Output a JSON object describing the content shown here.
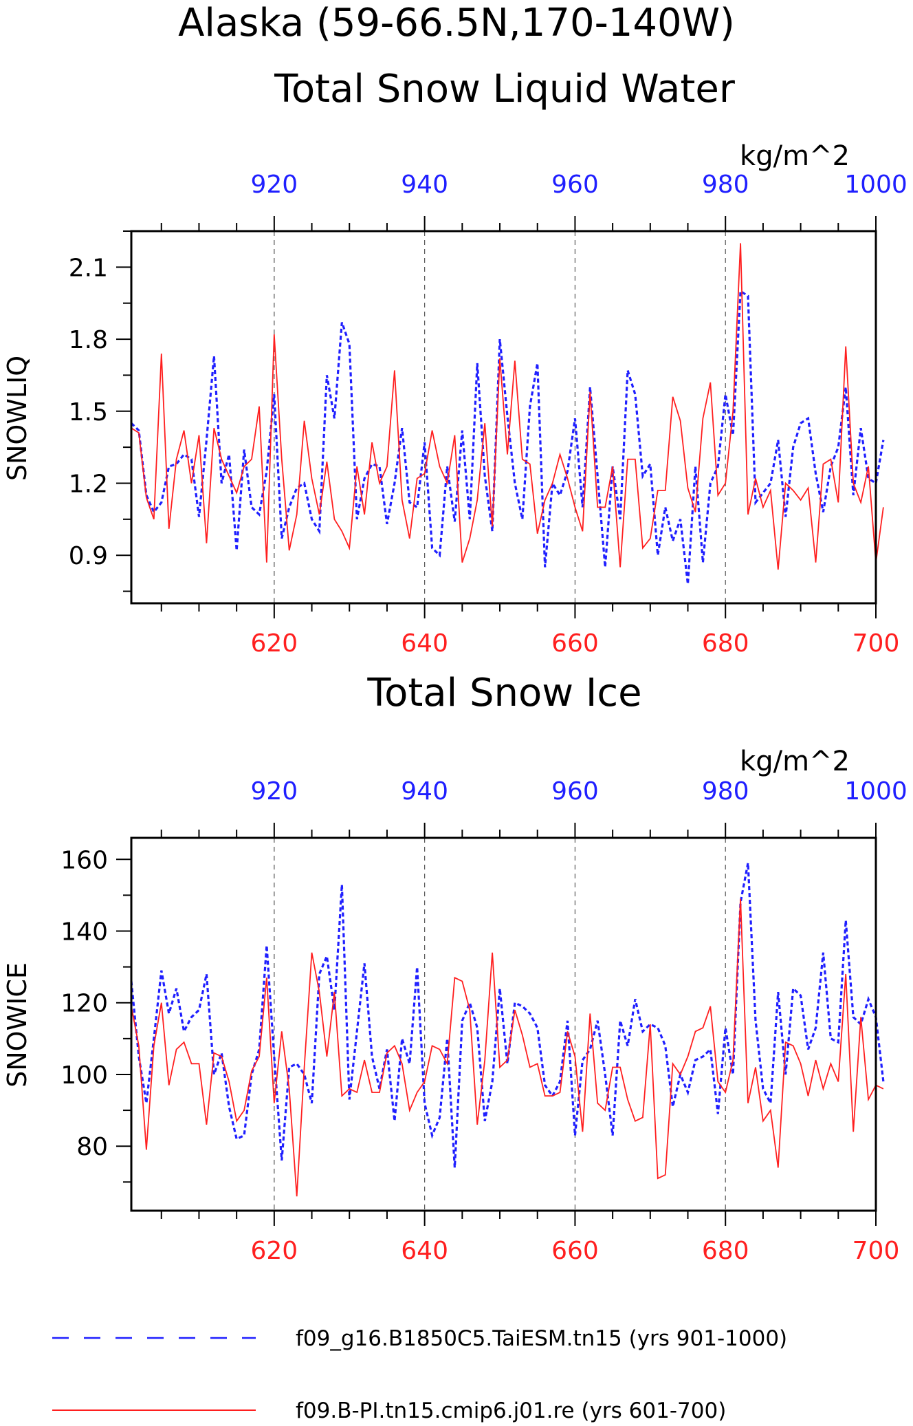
{
  "figure": {
    "title_line1": "Alaska (59-66.5N,170-140W)"
  },
  "colors": {
    "blue": "#1f1fff",
    "red": "#ff1f1f",
    "axis": "#000000",
    "grid": "#555555"
  },
  "legend": {
    "entries": [
      {
        "label": "f09_g16.B1850C5.TaiESM.tn15 (yrs 901-1000)",
        "color": "#1f1fff",
        "style": "dashed"
      },
      {
        "label": "f09.B-PI.tn15.cmip6.j01.re (yrs 601-700)",
        "color": "#ff1f1f",
        "style": "solid"
      }
    ]
  },
  "chart_data": [
    {
      "type": "line",
      "title": "Total Snow Liquid Water",
      "ylabel": "SNOWLIQ",
      "top_axis_label": "kg/m^2",
      "ylim": [
        0.7,
        2.25
      ],
      "yticks": [
        "0.9",
        "1.2",
        "1.5",
        "1.8",
        "2.1"
      ],
      "bottom_axis": {
        "range": [
          601,
          700
        ],
        "ticks": [
          "620",
          "640",
          "660",
          "680",
          "700"
        ],
        "color": "#ff1f1f"
      },
      "top_axis": {
        "range": [
          901,
          1000
        ],
        "ticks": [
          "920",
          "940",
          "960",
          "980",
          "1000"
        ],
        "color": "#1f1fff"
      },
      "grid": "vertical dashed at major ticks",
      "series": [
        {
          "axis": "top",
          "style": "dashed",
          "color": "#1f1fff",
          "start": 901,
          "values": [
            1.45,
            1.42,
            1.15,
            1.08,
            1.12,
            1.27,
            1.28,
            1.32,
            1.3,
            1.06,
            1.38,
            1.73,
            1.2,
            1.32,
            0.92,
            1.34,
            1.1,
            1.07,
            1.25,
            1.57,
            0.97,
            1.1,
            1.18,
            1.2,
            1.05,
            1.0,
            1.65,
            1.47,
            1.87,
            1.78,
            1.05,
            1.22,
            1.28,
            1.27,
            1.03,
            1.2,
            1.43,
            1.12,
            1.1,
            1.37,
            0.93,
            0.9,
            1.27,
            1.04,
            1.42,
            1.05,
            1.7,
            1.23,
            1.0,
            1.8,
            1.48,
            1.2,
            1.05,
            1.52,
            1.7,
            0.85,
            1.2,
            1.15,
            1.25,
            1.47,
            1.1,
            1.6,
            1.23,
            0.85,
            1.27,
            1.05,
            1.67,
            1.57,
            1.23,
            1.28,
            0.9,
            1.1,
            0.96,
            1.05,
            0.78,
            1.27,
            0.87,
            1.2,
            1.27,
            1.57,
            1.4,
            2.0,
            1.98,
            1.12,
            1.16,
            1.2,
            1.38,
            1.06,
            1.35,
            1.45,
            1.47,
            1.24,
            1.08,
            1.27,
            1.35,
            1.6,
            1.15,
            1.43,
            1.22,
            1.2,
            1.38
          ]
        },
        {
          "axis": "bottom",
          "style": "solid",
          "color": "#ff1f1f",
          "start": 601,
          "values": [
            1.43,
            1.41,
            1.14,
            1.05,
            1.74,
            1.01,
            1.3,
            1.42,
            1.2,
            1.4,
            0.95,
            1.43,
            1.3,
            1.23,
            1.16,
            1.27,
            1.3,
            1.52,
            0.87,
            1.82,
            1.3,
            0.92,
            1.07,
            1.46,
            1.22,
            1.07,
            1.29,
            1.05,
            1.0,
            0.93,
            1.27,
            1.07,
            1.37,
            1.2,
            1.27,
            1.67,
            1.13,
            0.97,
            1.22,
            1.24,
            1.42,
            1.27,
            1.2,
            1.4,
            0.87,
            0.97,
            1.13,
            1.45,
            1.02,
            1.72,
            1.32,
            1.71,
            1.3,
            1.28,
            0.99,
            1.13,
            1.2,
            1.32,
            1.22,
            1.1,
            1.0,
            1.58,
            1.1,
            1.1,
            1.27,
            0.85,
            1.3,
            1.3,
            0.93,
            0.97,
            1.17,
            1.17,
            1.56,
            1.46,
            1.18,
            1.08,
            1.47,
            1.62,
            1.15,
            1.2,
            1.5,
            2.2,
            1.07,
            1.22,
            1.1,
            1.17,
            0.84,
            1.2,
            1.17,
            1.13,
            1.18,
            0.87,
            1.28,
            1.3,
            1.12,
            1.77,
            1.2,
            1.12,
            1.27,
            0.87,
            1.1
          ]
        }
      ]
    },
    {
      "type": "line",
      "title": "Total Snow Ice",
      "ylabel": "SNOWICE",
      "top_axis_label": "kg/m^2",
      "ylim": [
        62,
        166
      ],
      "yticks": [
        "80",
        "100",
        "120",
        "140",
        "160"
      ],
      "bottom_axis": {
        "range": [
          601,
          700
        ],
        "ticks": [
          "620",
          "640",
          "660",
          "680",
          "700"
        ],
        "color": "#ff1f1f"
      },
      "top_axis": {
        "range": [
          901,
          1000
        ],
        "ticks": [
          "920",
          "940",
          "960",
          "980",
          "1000"
        ],
        "color": "#1f1fff"
      },
      "grid": "vertical dashed at major ticks",
      "series": [
        {
          "axis": "top",
          "style": "dashed",
          "color": "#1f1fff",
          "start": 901,
          "values": [
            126,
            105,
            92,
            110,
            129,
            117,
            124,
            112,
            116,
            118,
            128,
            100,
            106,
            91,
            82,
            83,
            100,
            107,
            136,
            105,
            76,
            102,
            103,
            100,
            92,
            128,
            133,
            118,
            153,
            93,
            112,
            131,
            105,
            96,
            107,
            87,
            110,
            103,
            130,
            92,
            83,
            88,
            110,
            74,
            115,
            120,
            113,
            87,
            98,
            124,
            103,
            120,
            119,
            117,
            113,
            97,
            94,
            98,
            115,
            83,
            104,
            107,
            115,
            100,
            83,
            115,
            108,
            121,
            112,
            114,
            113,
            108,
            91,
            100,
            95,
            104,
            105,
            107,
            89,
            113,
            100,
            148,
            159,
            115,
            96,
            92,
            123,
            100,
            124,
            122,
            107,
            113,
            134,
            110,
            109,
            143,
            116,
            114,
            121,
            116,
            98
          ]
        },
        {
          "axis": "bottom",
          "style": "solid",
          "color": "#ff1f1f",
          "start": 601,
          "values": [
            119,
            108,
            79,
            108,
            120,
            97,
            107,
            109,
            103,
            103,
            86,
            106,
            105,
            98,
            87,
            90,
            101,
            105,
            127,
            92,
            112,
            96,
            66,
            102,
            134,
            123,
            105,
            123,
            94,
            96,
            95,
            104,
            95,
            95,
            106,
            108,
            103,
            90,
            95,
            98,
            108,
            107,
            103,
            127,
            126,
            118,
            86,
            104,
            134,
            102,
            104,
            118,
            111,
            102,
            103,
            94,
            94,
            95,
            112,
            105,
            84,
            117,
            92,
            90,
            102,
            102,
            93,
            87,
            88,
            114,
            71,
            72,
            103,
            100,
            105,
            112,
            113,
            119,
            98,
            95,
            104,
            149,
            92,
            102,
            87,
            90,
            74,
            109,
            108,
            103,
            94,
            104,
            96,
            103,
            98,
            128,
            84,
            116,
            93,
            97,
            96
          ]
        }
      ]
    }
  ]
}
